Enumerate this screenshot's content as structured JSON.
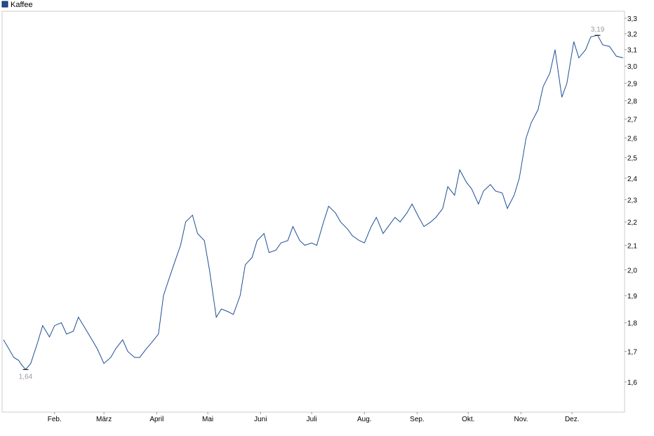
{
  "chart_data": {
    "type": "line",
    "title": "",
    "xlabel": "",
    "ylabel": "",
    "ylim": [
      1.5,
      3.33
    ],
    "y_scale": "log",
    "grid": false,
    "legend_position": "top-left",
    "series": [
      {
        "name": "Kaffee",
        "color": "#1f4e96",
        "x": [
          "2024-01-02",
          "2024-01-05",
          "2024-01-08",
          "2024-01-11",
          "2024-01-12",
          "2024-01-15",
          "2024-01-18",
          "2024-01-22",
          "2024-01-25",
          "2024-01-29",
          "2024-02-01",
          "2024-02-05",
          "2024-02-08",
          "2024-02-12",
          "2024-02-15",
          "2024-02-19",
          "2024-02-22",
          "2024-02-26",
          "2024-03-01",
          "2024-03-05",
          "2024-03-08",
          "2024-03-12",
          "2024-03-15",
          "2024-03-19",
          "2024-03-22",
          "2024-03-26",
          "2024-03-29",
          "2024-04-02",
          "2024-04-05",
          "2024-04-08",
          "2024-04-11",
          "2024-04-15",
          "2024-04-18",
          "2024-04-22",
          "2024-04-25",
          "2024-04-29",
          "2024-05-02",
          "2024-05-06",
          "2024-05-09",
          "2024-05-13",
          "2024-05-16",
          "2024-05-20",
          "2024-05-23",
          "2024-05-27",
          "2024-05-30",
          "2024-06-03",
          "2024-06-06",
          "2024-06-10",
          "2024-06-13",
          "2024-06-17",
          "2024-06-20",
          "2024-06-24",
          "2024-06-27",
          "2024-07-01",
          "2024-07-04",
          "2024-07-08",
          "2024-07-11",
          "2024-07-15",
          "2024-07-18",
          "2024-07-22",
          "2024-07-25",
          "2024-07-29",
          "2024-08-01",
          "2024-08-05",
          "2024-08-08",
          "2024-08-12",
          "2024-08-15",
          "2024-08-19",
          "2024-08-22",
          "2024-08-26",
          "2024-08-29",
          "2024-09-02",
          "2024-09-05",
          "2024-09-09",
          "2024-09-12",
          "2024-09-16",
          "2024-09-19",
          "2024-09-23",
          "2024-09-26",
          "2024-09-30",
          "2024-10-03",
          "2024-10-07",
          "2024-10-10",
          "2024-10-14",
          "2024-10-17",
          "2024-10-21",
          "2024-10-24",
          "2024-10-28",
          "2024-10-31",
          "2024-11-04",
          "2024-11-07",
          "2024-11-11",
          "2024-11-14",
          "2024-11-18",
          "2024-11-21",
          "2024-11-25",
          "2024-11-28",
          "2024-12-02",
          "2024-12-05",
          "2024-12-09",
          "2024-12-12",
          "2024-12-16",
          "2024-12-19",
          "2024-12-23",
          "2024-12-27",
          "2024-12-31"
        ],
        "values": [
          1.74,
          1.71,
          1.68,
          1.67,
          1.66,
          1.64,
          1.66,
          1.73,
          1.79,
          1.75,
          1.79,
          1.8,
          1.76,
          1.77,
          1.82,
          1.78,
          1.75,
          1.71,
          1.66,
          1.68,
          1.71,
          1.74,
          1.7,
          1.68,
          1.68,
          1.71,
          1.73,
          1.76,
          1.9,
          1.96,
          2.02,
          2.1,
          2.2,
          2.23,
          2.15,
          2.12,
          2.0,
          1.82,
          1.85,
          1.84,
          1.83,
          1.9,
          2.02,
          2.05,
          2.12,
          2.15,
          2.07,
          2.08,
          2.11,
          2.12,
          2.18,
          2.12,
          2.1,
          2.11,
          2.1,
          2.2,
          2.27,
          2.24,
          2.2,
          2.17,
          2.14,
          2.12,
          2.11,
          2.18,
          2.22,
          2.15,
          2.18,
          2.22,
          2.2,
          2.24,
          2.28,
          2.22,
          2.18,
          2.2,
          2.22,
          2.26,
          2.36,
          2.32,
          2.44,
          2.38,
          2.35,
          2.28,
          2.34,
          2.37,
          2.34,
          2.33,
          2.26,
          2.32,
          2.4,
          2.6,
          2.68,
          2.75,
          2.88,
          2.96,
          3.1,
          2.82,
          2.9,
          3.15,
          3.05,
          3.1,
          3.18,
          3.19,
          3.13,
          3.12,
          3.06,
          3.05
        ]
      }
    ],
    "x_ticks": [
      {
        "label": "Feb.",
        "date": "2024-02-01"
      },
      {
        "label": "März",
        "date": "2024-03-01"
      },
      {
        "label": "April",
        "date": "2024-04-01"
      },
      {
        "label": "Mai",
        "date": "2024-05-01"
      },
      {
        "label": "Juni",
        "date": "2024-06-01"
      },
      {
        "label": "Juli",
        "date": "2024-07-01"
      },
      {
        "label": "Aug.",
        "date": "2024-08-01"
      },
      {
        "label": "Sep.",
        "date": "2024-09-01"
      },
      {
        "label": "Okt.",
        "date": "2024-10-01"
      },
      {
        "label": "Nov.",
        "date": "2024-11-01"
      },
      {
        "label": "Dez.",
        "date": "2024-12-01"
      }
    ],
    "y_ticks": [
      {
        "label": "1,6",
        "value": 1.6
      },
      {
        "label": "1,7",
        "value": 1.7
      },
      {
        "label": "1,8",
        "value": 1.8
      },
      {
        "label": "1,9",
        "value": 1.9
      },
      {
        "label": "2,0",
        "value": 2.0
      },
      {
        "label": "2,1",
        "value": 2.1
      },
      {
        "label": "2,2",
        "value": 2.2
      },
      {
        "label": "2,3",
        "value": 2.3
      },
      {
        "label": "2,4",
        "value": 2.4
      },
      {
        "label": "2,5",
        "value": 2.5
      },
      {
        "label": "2,6",
        "value": 2.6
      },
      {
        "label": "2,7",
        "value": 2.7
      },
      {
        "label": "2,8",
        "value": 2.8
      },
      {
        "label": "2,9",
        "value": 2.9
      },
      {
        "label": "3,0",
        "value": 3.0
      },
      {
        "label": "3,1",
        "value": 3.1
      },
      {
        "label": "3,2",
        "value": 3.2
      },
      {
        "label": "3,3",
        "value": 3.3
      }
    ],
    "annotations": [
      {
        "kind": "min",
        "label": "1,64",
        "date": "2024-01-15",
        "value": 1.64
      },
      {
        "kind": "max",
        "label": "3,19",
        "date": "2024-12-16",
        "value": 3.19
      }
    ],
    "x_range": [
      "2024-01-02",
      "2024-12-31"
    ],
    "frame_color": "#cccccc",
    "label_color": "#999999"
  }
}
